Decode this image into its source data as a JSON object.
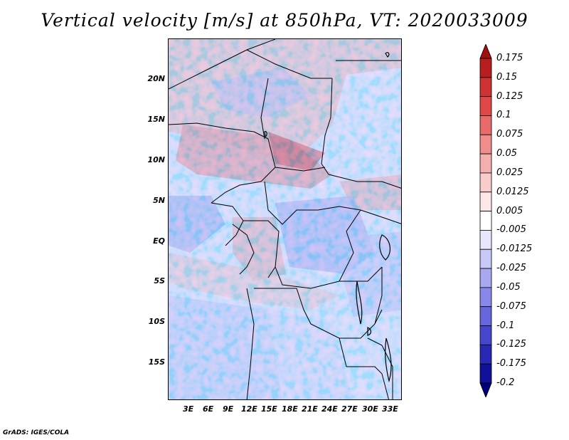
{
  "title": "Vertical velocity [m/s] at 850hPa, VT: 2020033009",
  "credit": "GrADS: IGES/COLA",
  "map": {
    "lat_labels": [
      "20N",
      "15N",
      "10N",
      "5N",
      "EQ",
      "5S",
      "10S",
      "15S"
    ],
    "lon_labels": [
      "3E",
      "6E",
      "9E",
      "12E",
      "15E",
      "18E",
      "21E",
      "24E",
      "27E",
      "30E",
      "33E"
    ]
  },
  "colorbar": {
    "levels": [
      "0.175",
      "0.15",
      "0.125",
      "0.1",
      "0.075",
      "0.05",
      "0.025",
      "0.0125",
      "0.005",
      "-0.005",
      "-0.0125",
      "-0.025",
      "-0.05",
      "-0.075",
      "-0.1",
      "-0.125",
      "-0.175",
      "-0.2"
    ],
    "colors": [
      "#a01010",
      "#b81e1e",
      "#cf3232",
      "#e04848",
      "#ea6a6a",
      "#f08c8c",
      "#f5aeae",
      "#f9cccc",
      "#fce8e8",
      "#ffffff",
      "#e6e6fc",
      "#c8c8f6",
      "#a8a8f0",
      "#8888ea",
      "#6666de",
      "#4646cc",
      "#2828b4",
      "#10109a",
      "#00007a"
    ]
  }
}
